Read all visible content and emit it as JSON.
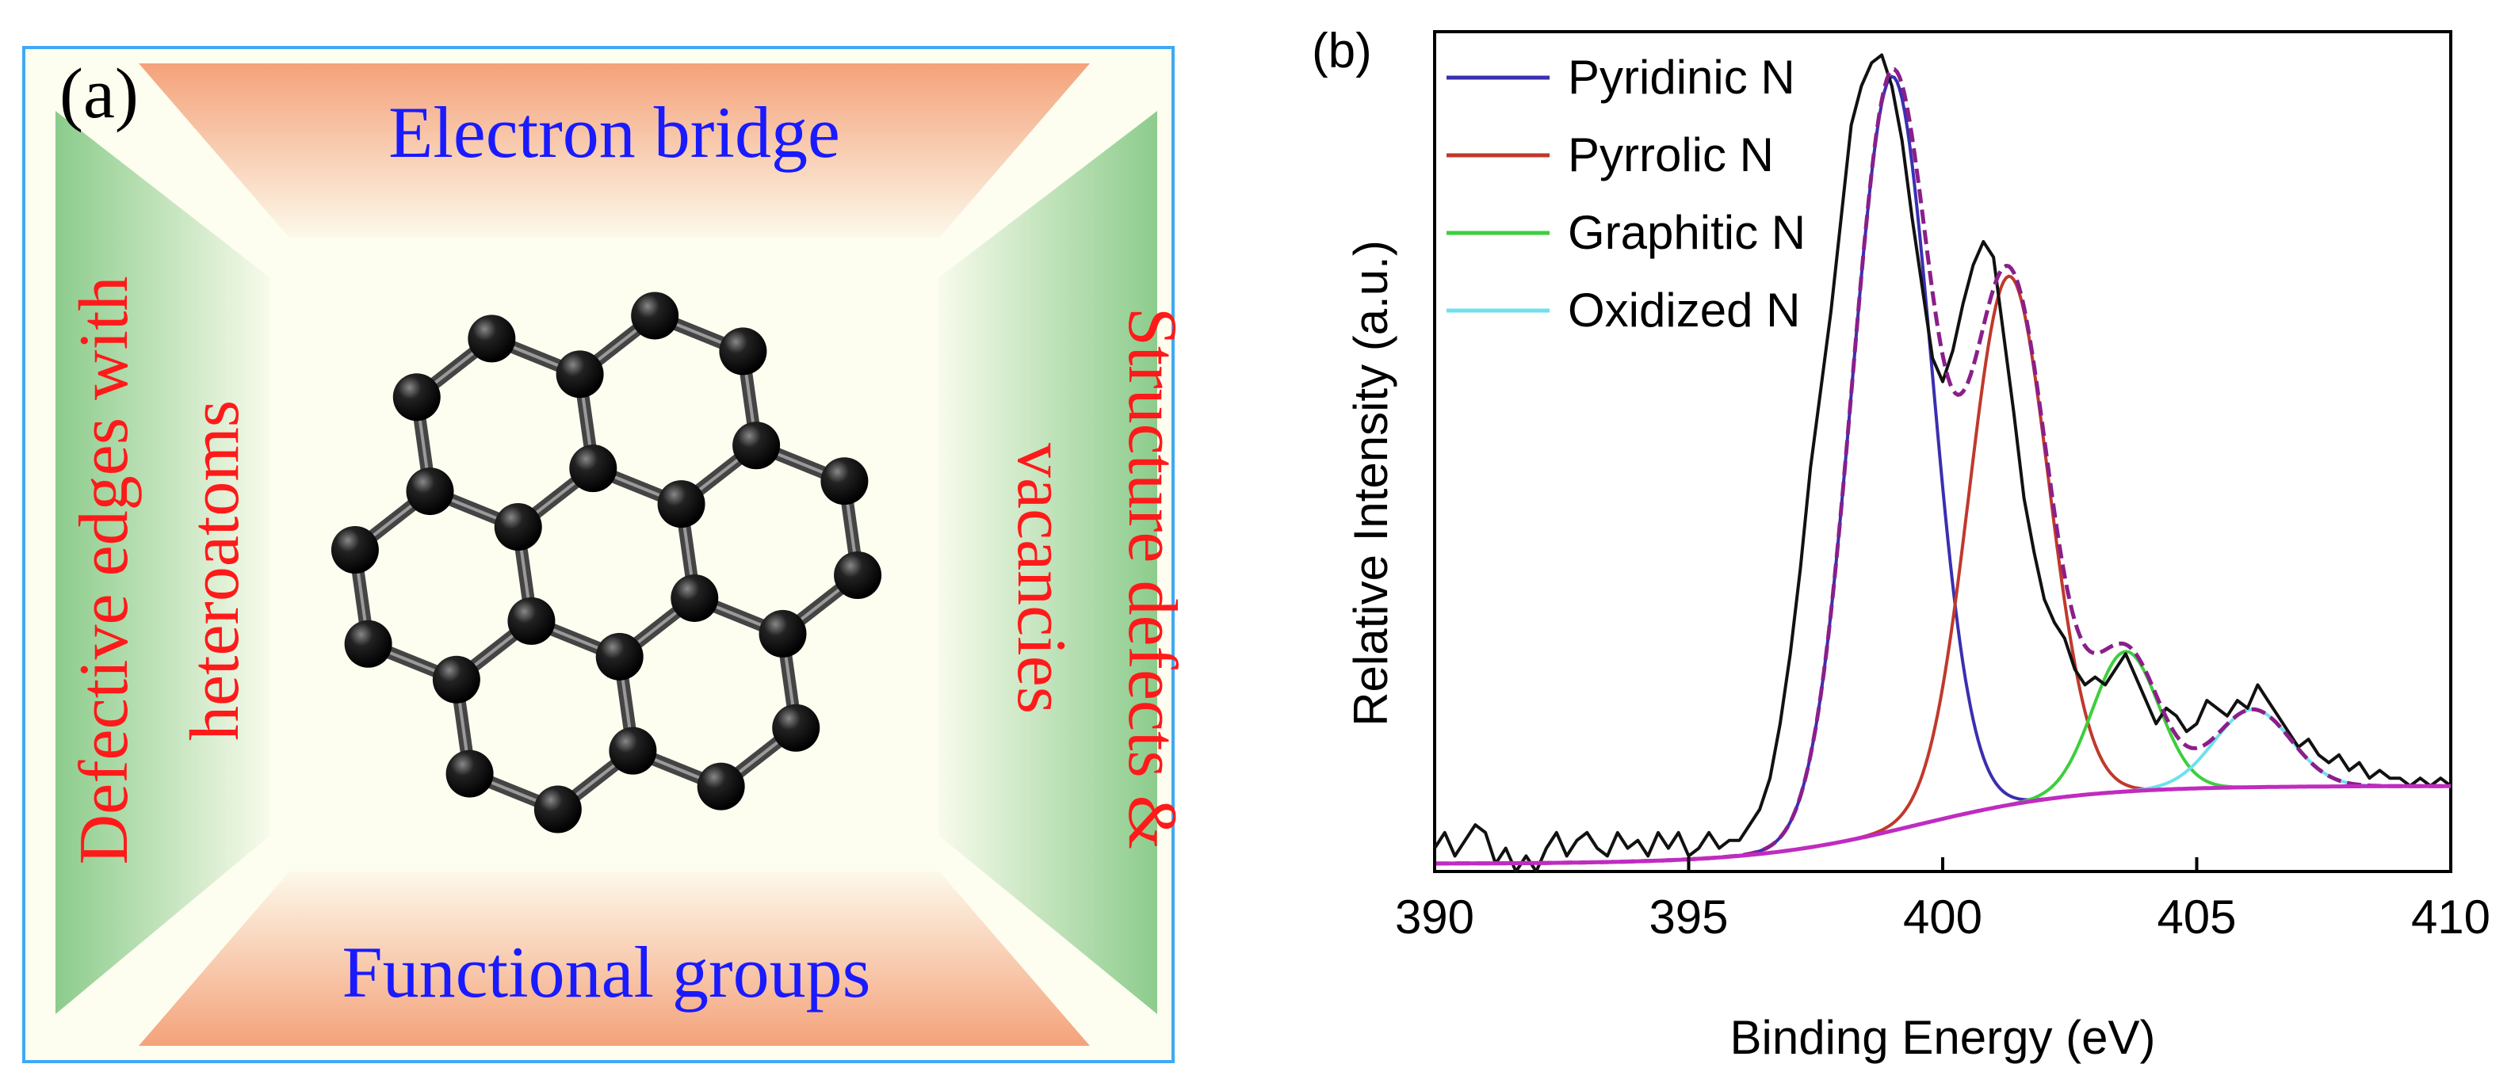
{
  "panel_a": {
    "label": "(a)",
    "top_text": "Electron bridge",
    "bottom_text": "Functional groups",
    "left_lines": [
      "Defective edges with",
      "heteroatoms"
    ],
    "right_lines": [
      "Structure defects &",
      "vacancies"
    ],
    "colors": {
      "border": "#3fa9f5",
      "trapezoid_top_bottom": "#f4a27a",
      "trapezoid_left_right": "#8ccc8c",
      "background": "#fdfdf0",
      "horizontal_text": "#1a1aff",
      "vertical_text": "#ff1a1a",
      "atom": "#111111",
      "bond": "#555555"
    }
  },
  "chart_data": {
    "type": "line",
    "panel_label": "(b)",
    "xlabel": "Binding Energy (eV)",
    "ylabel": "Relative Intensity (a.u.)",
    "xlim": [
      390,
      410
    ],
    "ylim": [
      0,
      1.08
    ],
    "xticks": [
      390,
      395,
      400,
      405,
      410
    ],
    "legend_position": "top-left",
    "legend": [
      {
        "name": "Pyridinic N",
        "color": "#3a2fb0"
      },
      {
        "name": "Pyrrolic N",
        "color": "#c0392b"
      },
      {
        "name": "Graphitic N",
        "color": "#3ccf3c"
      },
      {
        "name": "Oxidized N",
        "color": "#6fe0ee"
      }
    ],
    "baseline": {
      "color": "#c02bc0",
      "y0": 0.01,
      "y1": 0.11,
      "center": 399.5,
      "width": 1.6
    },
    "components": [
      {
        "name": "Pyridinic N",
        "center": 399.0,
        "height": 0.97,
        "sigma": 0.78
      },
      {
        "name": "Pyrrolic N",
        "center": 401.3,
        "height": 0.68,
        "sigma": 0.78
      },
      {
        "name": "Graphitic N",
        "center": 403.6,
        "height": 0.18,
        "sigma": 0.65
      },
      {
        "name": "Oxidized N",
        "center": 406.1,
        "height": 0.1,
        "sigma": 0.75
      }
    ],
    "envelope_color": "#8a1f8a",
    "raw_data": {
      "color": "#111111",
      "x": [
        390.0,
        390.2,
        390.4,
        390.6,
        390.8,
        391.0,
        391.2,
        391.4,
        391.6,
        391.8,
        392.0,
        392.2,
        392.4,
        392.6,
        392.8,
        393.0,
        393.2,
        393.4,
        393.6,
        393.8,
        394.0,
        394.2,
        394.4,
        394.6,
        394.8,
        395.0,
        395.2,
        395.4,
        395.6,
        395.8,
        396.0,
        396.2,
        396.4,
        396.6,
        396.8,
        397.0,
        397.2,
        397.4,
        397.6,
        397.8,
        398.0,
        398.2,
        398.4,
        398.6,
        398.8,
        399.0,
        399.2,
        399.4,
        399.6,
        399.8,
        400.0,
        400.2,
        400.4,
        400.6,
        400.8,
        401.0,
        401.2,
        401.4,
        401.6,
        401.8,
        402.0,
        402.2,
        402.4,
        402.6,
        402.8,
        403.0,
        403.2,
        403.4,
        403.6,
        403.8,
        404.0,
        404.2,
        404.4,
        404.6,
        404.8,
        405.0,
        405.2,
        405.4,
        405.6,
        405.8,
        406.0,
        406.2,
        406.4,
        406.6,
        406.8,
        407.0,
        407.2,
        407.4,
        407.6,
        407.8,
        408.0,
        408.2,
        408.4,
        408.6,
        408.8,
        409.0,
        409.2,
        409.4,
        409.6,
        409.8,
        410.0
      ],
      "y": [
        0.03,
        0.05,
        0.02,
        0.04,
        0.06,
        0.05,
        0.01,
        0.03,
        0.0,
        0.02,
        0.0,
        0.03,
        0.05,
        0.02,
        0.04,
        0.05,
        0.03,
        0.02,
        0.05,
        0.03,
        0.04,
        0.02,
        0.05,
        0.03,
        0.05,
        0.02,
        0.03,
        0.05,
        0.03,
        0.04,
        0.04,
        0.06,
        0.08,
        0.12,
        0.19,
        0.28,
        0.39,
        0.52,
        0.62,
        0.72,
        0.84,
        0.96,
        1.01,
        1.04,
        1.05,
        1.01,
        0.94,
        0.84,
        0.75,
        0.66,
        0.63,
        0.67,
        0.73,
        0.78,
        0.81,
        0.79,
        0.69,
        0.59,
        0.48,
        0.41,
        0.35,
        0.32,
        0.3,
        0.26,
        0.24,
        0.25,
        0.24,
        0.26,
        0.28,
        0.25,
        0.22,
        0.19,
        0.21,
        0.2,
        0.18,
        0.19,
        0.22,
        0.21,
        0.2,
        0.22,
        0.21,
        0.24,
        0.22,
        0.2,
        0.18,
        0.16,
        0.17,
        0.15,
        0.14,
        0.15,
        0.13,
        0.14,
        0.12,
        0.13,
        0.12,
        0.12,
        0.11,
        0.12,
        0.11,
        0.12,
        0.11
      ]
    }
  }
}
